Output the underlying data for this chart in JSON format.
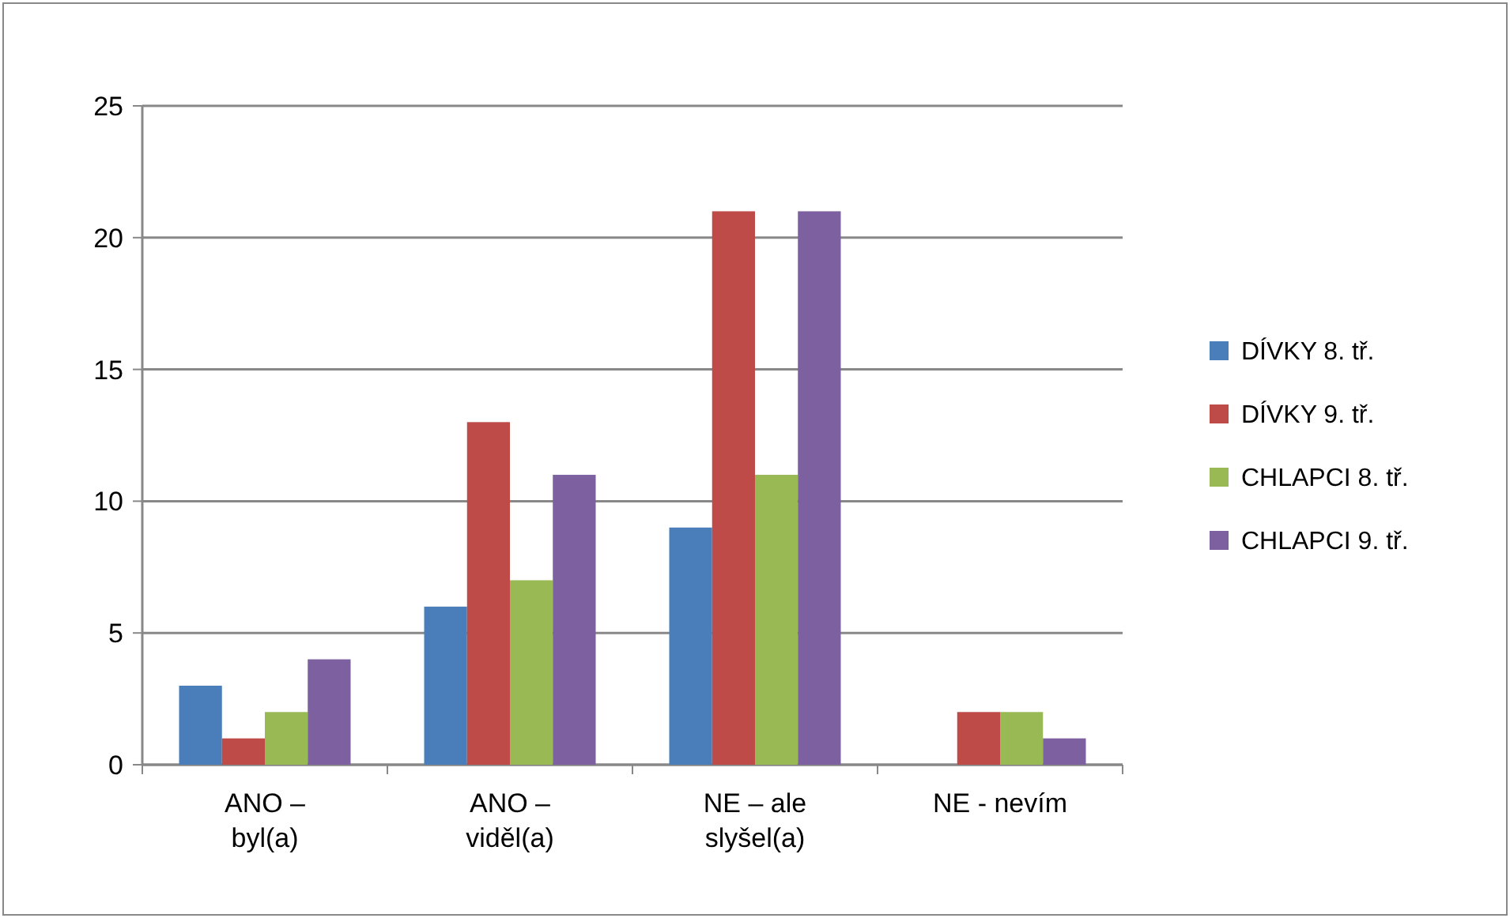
{
  "chart_data": {
    "type": "bar",
    "categories": [
      "ANO – byl(a)",
      "ANO – viděl(a)",
      "NE – ale slyšel(a)",
      "NE - nevím"
    ],
    "series": [
      {
        "name": "DÍVKY 8. tř.",
        "color": "#4a7ebb",
        "values": [
          3,
          6,
          9,
          0
        ]
      },
      {
        "name": "DÍVKY 9. tř.",
        "color": "#be4b48",
        "values": [
          1,
          13,
          21,
          2
        ]
      },
      {
        "name": "CHLAPCI 8. tř.",
        "color": "#98b954",
        "values": [
          2,
          7,
          11,
          2
        ]
      },
      {
        "name": "CHLAPCI 9. tř.",
        "color": "#7d60a0",
        "values": [
          4,
          11,
          21,
          1
        ]
      }
    ],
    "ylim": [
      0,
      25
    ],
    "yticks": [
      0,
      5,
      10,
      15,
      20,
      25
    ],
    "grid": "y",
    "legend": "right"
  }
}
